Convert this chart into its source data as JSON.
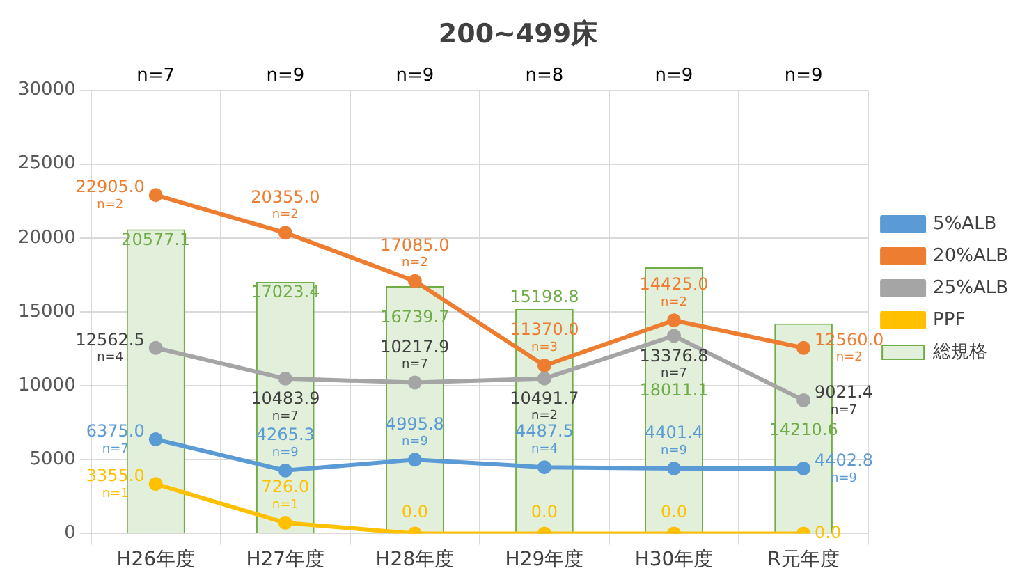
{
  "chart_data": {
    "type": "bar",
    "title": "200~499床",
    "categories": [
      "H26年度",
      "H27年度",
      "H28年度",
      "H29年度",
      "H30年度",
      "R元年度"
    ],
    "series": [
      {
        "name": "総規格",
        "color": "#e2efda",
        "values": [
          20577.1,
          17023.4,
          16739.7,
          15198.8,
          18011.1,
          14210.6
        ],
        "value_labels": [
          "20577.1",
          "17023.4",
          "16739.7",
          "15198.8",
          "18011.1",
          "14210.6"
        ]
      },
      {
        "name": "5%ALB",
        "type": "line",
        "color": "#5b9bd5",
        "values": [
          6375.0,
          4265.3,
          4995.8,
          4487.5,
          4401.4,
          4402.8
        ],
        "value_labels": [
          "6375.0",
          "4265.3",
          "4995.8",
          "4487.5",
          "4401.4",
          "4402.8"
        ]
      },
      {
        "name": "20%ALB",
        "type": "line",
        "color": "#ed7d31",
        "values": [
          22905.0,
          20355.0,
          17085.0,
          11370.0,
          14425.0,
          12560.0
        ],
        "value_labels": [
          "22905.0",
          "20355.0",
          "17085.0",
          "11370.0",
          "14425.0",
          "12560.0"
        ]
      },
      {
        "name": "25%ALB",
        "type": "line",
        "color": "#a5a5a5",
        "values": [
          12562.5,
          10483.9,
          10217.9,
          10491.7,
          13376.8,
          9021.4
        ],
        "value_labels": [
          "12562.5",
          "10483.9",
          "10217.9",
          "10491.7",
          "13376.8",
          "9021.4"
        ]
      },
      {
        "name": "PPF",
        "type": "line",
        "color": "#ffc000",
        "values": [
          3355.0,
          726.0,
          0.0,
          0.0,
          0.0,
          0.0
        ],
        "value_labels": [
          "3355.0",
          "726.0",
          "0.0",
          "0.0",
          "0.0",
          "0.0"
        ]
      }
    ],
    "ylim": [
      0,
      30000
    ],
    "yticks": [
      0,
      5000,
      10000,
      15000,
      20000,
      25000,
      30000
    ],
    "grid": true,
    "legend": "right",
    "marker": "circle",
    "annotations": [
      "n=7",
      "n=9",
      "n=9",
      "n=8",
      "n=9",
      "n=9",
      {
        "text": "n=7",
        "x": "H26年度",
        "y": 6375.0
      },
      {
        "text": "n=9",
        "x": "H27年度",
        "y": 4265.3
      },
      {
        "text": "n=9",
        "x": "H28年度",
        "y": 4995.8
      },
      {
        "text": "n=4",
        "x": "H29年度",
        "y": 4487.5
      },
      {
        "text": "n=9",
        "x": "H30年度",
        "y": 4401.4
      },
      {
        "text": "n=9",
        "x": "R元年度",
        "y": 4402.8
      },
      {
        "text": "n=2",
        "x": "H26年度",
        "y": 22905.0
      },
      {
        "text": "n=2",
        "x": "H27年度",
        "y": 20355.0
      },
      {
        "text": "n=2",
        "x": "H28年度",
        "y": 17085.0
      },
      {
        "text": "n=3",
        "x": "H29年度",
        "y": 11370.0
      },
      {
        "text": "n=2",
        "x": "H30年度",
        "y": 14425.0
      },
      {
        "text": "n=2",
        "x": "R元年度",
        "y": 12560.0
      },
      {
        "text": "n=4",
        "x": "H26年度",
        "y": 12562.5
      },
      {
        "text": "n=7",
        "x": "H27年度",
        "y": 10483.9
      },
      {
        "text": "n=7",
        "x": "H28年度",
        "y": 10217.9
      },
      {
        "text": "n=2",
        "x": "H29年度",
        "y": 10491.7
      },
      {
        "text": "n=7",
        "x": "H30年度",
        "y": 13376.8
      },
      {
        "text": "n=7",
        "x": "R元年度",
        "y": 9021.4
      },
      {
        "text": "n=1",
        "x": "H26年度",
        "y": 3355.0
      },
      {
        "text": "n=1",
        "x": "H27年度",
        "y": 726.0
      }
    ]
  }
}
